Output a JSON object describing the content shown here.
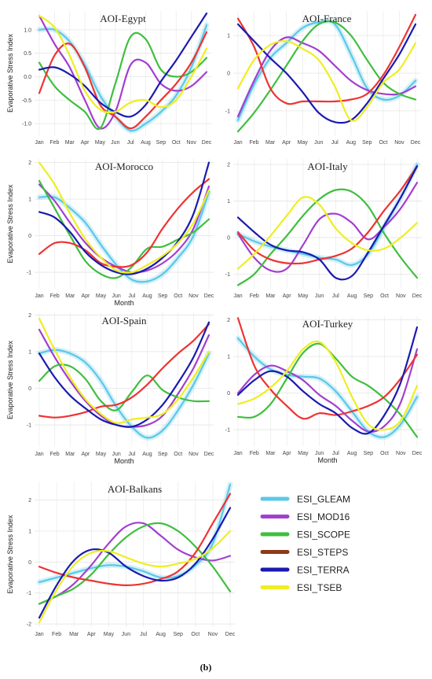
{
  "chart_data": [
    {
      "type": "line",
      "title": "AOI-Egypt",
      "xlabel": "",
      "ylabel": "Evaporative Stress Index",
      "categories": [
        "Jan",
        "Feb",
        "Mar",
        "Apr",
        "May",
        "Jun",
        "Jul",
        "Aug",
        "Sep",
        "Oct",
        "Nov",
        "Dec"
      ],
      "ylim": [
        -1.25,
        1.4
      ],
      "yticks": [
        1.0,
        0.5,
        0.0,
        -0.5,
        -1.0
      ],
      "ytick_labels": [
        "1.0",
        "0.5",
        "0.0",
        "-0.5",
        "-1.0"
      ],
      "series": [
        {
          "name": "ESI_GLEAM",
          "color": "#5bc8e8",
          "values": [
            1.0,
            1.0,
            0.75,
            0.25,
            -0.4,
            -0.85,
            -1.15,
            -1.0,
            -0.75,
            -0.4,
            0.2,
            1.1
          ]
        },
        {
          "name": "ESI_MOD16",
          "color": "#a23fd0",
          "values": [
            1.3,
            0.7,
            0.2,
            -0.5,
            -1.1,
            -0.75,
            0.25,
            0.3,
            -0.15,
            -0.3,
            -0.2,
            0.1
          ]
        },
        {
          "name": "ESI_SCOPE",
          "color": "#3fbf3f",
          "values": [
            0.3,
            -0.2,
            -0.5,
            -0.75,
            -1.1,
            -0.15,
            0.85,
            0.8,
            0.15,
            0.0,
            0.1,
            0.4
          ]
        },
        {
          "name": "ESI_STEPS",
          "color": "#ee3333",
          "values": [
            -0.35,
            0.45,
            0.7,
            0.2,
            -0.6,
            -0.85,
            -1.1,
            -0.85,
            -0.5,
            -0.15,
            0.3,
            0.95
          ]
        },
        {
          "name": "ESI_TERRA",
          "color": "#1a1ab0",
          "values": [
            0.15,
            0.2,
            0.05,
            -0.2,
            -0.55,
            -0.75,
            -0.85,
            -0.6,
            -0.1,
            0.35,
            0.85,
            1.35
          ]
        },
        {
          "name": "ESI_TSEB",
          "color": "#eeee22",
          "values": [
            1.3,
            1.05,
            0.45,
            -0.3,
            -0.7,
            -0.75,
            -0.55,
            -0.5,
            -0.65,
            -0.5,
            0.0,
            0.6
          ]
        }
      ]
    },
    {
      "type": "line",
      "title": "AOI-France",
      "xlabel": "",
      "ylabel": "",
      "categories": [
        "Jan",
        "Feb",
        "Mar",
        "Apr",
        "May",
        "Jun",
        "Jul",
        "Aug",
        "Sep",
        "Oct",
        "Nov",
        "Dec"
      ],
      "ylim": [
        -1.65,
        1.65
      ],
      "yticks": [
        1,
        0,
        -1
      ],
      "ytick_labels": [
        "1",
        "0",
        "-1"
      ],
      "series": [
        {
          "name": "ESI_GLEAM",
          "color": "#5bc8e8",
          "values": [
            -1.25,
            -0.3,
            0.4,
            0.8,
            1.2,
            1.35,
            1.3,
            0.5,
            -0.4,
            -0.7,
            -0.6,
            -0.2
          ]
        },
        {
          "name": "ESI_MOD16",
          "color": "#a23fd0",
          "values": [
            -1.15,
            -0.2,
            0.6,
            0.95,
            0.8,
            0.6,
            0.2,
            -0.2,
            -0.45,
            -0.55,
            -0.55,
            -0.35
          ]
        },
        {
          "name": "ESI_SCOPE",
          "color": "#3fbf3f",
          "values": [
            -1.55,
            -1.05,
            -0.45,
            0.2,
            0.85,
            1.3,
            1.35,
            1.0,
            0.35,
            -0.25,
            -0.55,
            -0.7
          ]
        },
        {
          "name": "ESI_STEPS",
          "color": "#ee3333",
          "values": [
            1.45,
            0.7,
            -0.4,
            -0.8,
            -0.75,
            -0.75,
            -0.75,
            -0.7,
            -0.55,
            -0.05,
            0.7,
            1.55
          ]
        },
        {
          "name": "ESI_TERRA",
          "color": "#1a1ab0",
          "values": [
            1.3,
            0.85,
            0.4,
            0.0,
            -0.5,
            -1.05,
            -1.3,
            -1.25,
            -0.8,
            -0.15,
            0.5,
            1.3
          ]
        },
        {
          "name": "ESI_TSEB",
          "color": "#eeee22",
          "values": [
            -0.4,
            0.35,
            0.75,
            0.85,
            0.65,
            0.35,
            -0.35,
            -1.25,
            -0.9,
            -0.25,
            0.1,
            0.8
          ]
        }
      ]
    },
    {
      "type": "line",
      "title": "AOI-Morocco",
      "xlabel": "Month",
      "ylabel": "Evaporative Stress Index",
      "categories": [
        "Jan",
        "Feb",
        "Mar",
        "Apr",
        "May",
        "Jun",
        "Jul",
        "Aug",
        "Sep",
        "Oct",
        "Nov",
        "Dec"
      ],
      "ylim": [
        -1.45,
        2.1
      ],
      "yticks": [
        2,
        1,
        0,
        -1
      ],
      "ytick_labels": [
        "2",
        "1",
        "0",
        "-1"
      ],
      "series": [
        {
          "name": "ESI_GLEAM",
          "color": "#5bc8e8",
          "values": [
            1.05,
            1.05,
            0.75,
            0.35,
            -0.25,
            -0.8,
            -1.2,
            -1.25,
            -1.05,
            -0.6,
            0.0,
            1.2
          ]
        },
        {
          "name": "ESI_MOD16",
          "color": "#a23fd0",
          "values": [
            1.4,
            0.95,
            0.35,
            -0.2,
            -0.6,
            -0.85,
            -1.0,
            -0.95,
            -0.75,
            -0.4,
            0.2,
            1.35
          ]
        },
        {
          "name": "ESI_SCOPE",
          "color": "#3fbf3f",
          "values": [
            1.5,
            0.75,
            0.0,
            -0.7,
            -1.05,
            -1.15,
            -0.85,
            -0.35,
            -0.3,
            -0.1,
            0.1,
            0.45
          ]
        },
        {
          "name": "ESI_STEPS",
          "color": "#ee3333",
          "values": [
            -0.5,
            -0.2,
            -0.2,
            -0.4,
            -0.75,
            -0.85,
            -0.8,
            -0.45,
            0.2,
            0.75,
            1.2,
            1.55
          ]
        },
        {
          "name": "ESI_TERRA",
          "color": "#1a1ab0",
          "values": [
            0.65,
            0.5,
            0.1,
            -0.45,
            -0.8,
            -1.0,
            -1.05,
            -0.9,
            -0.6,
            -0.15,
            0.6,
            2.0
          ]
        },
        {
          "name": "ESI_TSEB",
          "color": "#eeee22",
          "values": [
            2.0,
            1.4,
            0.6,
            -0.1,
            -0.6,
            -0.95,
            -1.0,
            -0.8,
            -0.55,
            -0.2,
            0.35,
            1.25
          ]
        }
      ]
    },
    {
      "type": "line",
      "title": "AOI-Italy",
      "xlabel": "",
      "ylabel": "",
      "categories": [
        "Jan",
        "Feb",
        "Mar",
        "Apr",
        "May",
        "Jun",
        "Jul",
        "Aug",
        "Sep",
        "Oct",
        "Nov",
        "Dec"
      ],
      "ylim": [
        -1.4,
        2.15
      ],
      "yticks": [
        2,
        1,
        0,
        -1
      ],
      "ytick_labels": [
        "2",
        "1",
        "0",
        "-1"
      ],
      "series": [
        {
          "name": "ESI_GLEAM",
          "color": "#5bc8e8",
          "values": [
            0.1,
            -0.1,
            -0.25,
            -0.35,
            -0.45,
            -0.55,
            -0.6,
            -0.75,
            -0.45,
            0.3,
            1.1,
            2.0
          ]
        },
        {
          "name": "ESI_MOD16",
          "color": "#a23fd0",
          "values": [
            0.1,
            -0.55,
            -0.9,
            -0.85,
            -0.2,
            0.5,
            0.65,
            0.4,
            -0.05,
            0.3,
            0.8,
            1.5
          ]
        },
        {
          "name": "ESI_SCOPE",
          "color": "#3fbf3f",
          "values": [
            -1.3,
            -1.0,
            -0.45,
            0.05,
            0.6,
            1.05,
            1.3,
            1.25,
            0.85,
            0.1,
            -0.55,
            -1.1
          ]
        },
        {
          "name": "ESI_STEPS",
          "color": "#ee3333",
          "values": [
            0.15,
            -0.35,
            -0.6,
            -0.7,
            -0.7,
            -0.6,
            -0.5,
            -0.3,
            0.15,
            0.75,
            1.3,
            1.95
          ]
        },
        {
          "name": "ESI_TERRA",
          "color": "#1a1ab0",
          "values": [
            0.55,
            0.15,
            -0.2,
            -0.35,
            -0.4,
            -0.6,
            -1.1,
            -1.05,
            -0.4,
            0.35,
            1.1,
            1.95
          ]
        },
        {
          "name": "ESI_TSEB",
          "color": "#eeee22",
          "values": [
            -0.85,
            -0.45,
            0.05,
            0.6,
            1.1,
            0.9,
            0.25,
            -0.15,
            -0.35,
            -0.3,
            0.0,
            0.4
          ]
        }
      ]
    },
    {
      "type": "line",
      "title": "AOI-Spain",
      "xlabel": "Month",
      "ylabel": "Evaporative Stress Index",
      "categories": [
        "Jan",
        "Feb",
        "Mar",
        "Apr",
        "May",
        "Jun",
        "Jul",
        "Aug",
        "Sep",
        "Oct",
        "Nov",
        "Dec"
      ],
      "ylim": [
        -1.6,
        2.05
      ],
      "yticks": [
        2,
        1,
        0,
        -1
      ],
      "ytick_labels": [
        "2",
        "1",
        "0",
        "-1"
      ],
      "series": [
        {
          "name": "ESI_GLEAM",
          "color": "#5bc8e8",
          "values": [
            0.95,
            1.05,
            0.95,
            0.7,
            0.2,
            -0.5,
            -1.05,
            -1.35,
            -1.15,
            -0.6,
            0.1,
            0.95
          ]
        },
        {
          "name": "ESI_MOD16",
          "color": "#a23fd0",
          "values": [
            1.6,
            0.85,
            0.2,
            -0.35,
            -0.75,
            -1.0,
            -1.05,
            -1.0,
            -0.75,
            -0.15,
            0.55,
            1.45
          ]
        },
        {
          "name": "ESI_SCOPE",
          "color": "#3fbf3f",
          "values": [
            0.2,
            0.6,
            0.6,
            0.25,
            -0.35,
            -0.6,
            -0.1,
            0.35,
            -0.05,
            -0.25,
            -0.35,
            -0.35
          ]
        },
        {
          "name": "ESI_STEPS",
          "color": "#ee3333",
          "values": [
            -0.75,
            -0.8,
            -0.75,
            -0.65,
            -0.5,
            -0.45,
            -0.25,
            0.1,
            0.55,
            0.95,
            1.3,
            1.75
          ]
        },
        {
          "name": "ESI_TERRA",
          "color": "#1a1ab0",
          "values": [
            0.95,
            0.3,
            -0.2,
            -0.55,
            -0.85,
            -1.0,
            -1.05,
            -0.85,
            -0.45,
            0.15,
            0.85,
            1.8
          ]
        },
        {
          "name": "ESI_TSEB",
          "color": "#eeee22",
          "values": [
            1.9,
            1.05,
            0.3,
            -0.3,
            -0.7,
            -0.95,
            -0.85,
            -0.8,
            -0.7,
            -0.3,
            0.3,
            1.0
          ]
        }
      ]
    },
    {
      "type": "line",
      "title": "AOI-Turkey",
      "xlabel": "Month",
      "ylabel": "",
      "categories": [
        "Jan",
        "Feb",
        "Mar",
        "Apr",
        "May",
        "Jun",
        "Jul",
        "Aug",
        "Sep",
        "Oct",
        "Nov",
        "Dec"
      ],
      "ylim": [
        -1.45,
        2.1
      ],
      "yticks": [
        2,
        1,
        0,
        -1
      ],
      "ytick_labels": [
        "2",
        "1",
        "0",
        "-1"
      ],
      "series": [
        {
          "name": "ESI_GLEAM",
          "color": "#5bc8e8",
          "values": [
            1.5,
            1.0,
            0.65,
            0.5,
            0.45,
            0.4,
            0.05,
            -0.5,
            -1.05,
            -1.2,
            -0.85,
            -0.1
          ]
        },
        {
          "name": "ESI_MOD16",
          "color": "#a23fd0",
          "values": [
            0.0,
            0.5,
            0.75,
            0.6,
            0.35,
            -0.05,
            -0.35,
            -0.75,
            -1.05,
            -0.9,
            -0.25,
            1.2
          ]
        },
        {
          "name": "ESI_SCOPE",
          "color": "#3fbf3f",
          "values": [
            -0.65,
            -0.65,
            -0.3,
            0.4,
            1.1,
            1.35,
            0.95,
            0.45,
            0.2,
            -0.15,
            -0.6,
            -1.2
          ]
        },
        {
          "name": "ESI_STEPS",
          "color": "#ee3333",
          "values": [
            2.05,
            0.75,
            0.1,
            -0.35,
            -0.7,
            -0.55,
            -0.6,
            -0.5,
            -0.35,
            -0.1,
            0.4,
            1.05
          ]
        },
        {
          "name": "ESI_TERRA",
          "color": "#1a1ab0",
          "values": [
            -0.05,
            0.35,
            0.6,
            0.45,
            0.05,
            -0.3,
            -0.55,
            -0.95,
            -1.1,
            -0.6,
            0.3,
            1.8
          ]
        },
        {
          "name": "ESI_TSEB",
          "color": "#eeee22",
          "values": [
            -0.3,
            -0.15,
            0.15,
            0.6,
            1.2,
            1.4,
            0.85,
            -0.1,
            -0.85,
            -1.0,
            -0.75,
            0.2
          ]
        }
      ]
    },
    {
      "type": "line",
      "title": "AOI-Balkans",
      "xlabel": "",
      "ylabel": "Evaporative Stress Index",
      "categories": [
        "Jan",
        "Feb",
        "Mar",
        "Apr",
        "May",
        "Jun",
        "Jul",
        "Aug",
        "Sep",
        "Oct",
        "Nov",
        "Dec"
      ],
      "ylim": [
        -2.1,
        2.6
      ],
      "yticks": [
        2,
        1,
        0,
        -1,
        -2
      ],
      "ytick_labels": [
        "2",
        "1",
        "0",
        "-1",
        "-2"
      ],
      "series": [
        {
          "name": "ESI_GLEAM",
          "color": "#5bc8e8",
          "values": [
            -0.65,
            -0.5,
            -0.35,
            -0.2,
            -0.1,
            -0.15,
            -0.3,
            -0.5,
            -0.45,
            -0.1,
            0.6,
            2.5
          ]
        },
        {
          "name": "ESI_MOD16",
          "color": "#a23fd0",
          "values": [
            -1.35,
            -1.1,
            -0.7,
            -0.1,
            0.6,
            1.15,
            1.25,
            0.85,
            0.4,
            0.15,
            0.05,
            0.2
          ]
        },
        {
          "name": "ESI_SCOPE",
          "color": "#3fbf3f",
          "values": [
            -1.35,
            -1.1,
            -0.85,
            -0.4,
            0.25,
            0.8,
            1.15,
            1.25,
            1.0,
            0.5,
            -0.15,
            -0.95
          ]
        },
        {
          "name": "ESI_STEPS",
          "color": "#ee3333",
          "values": [
            -0.15,
            -0.35,
            -0.5,
            -0.6,
            -0.7,
            -0.75,
            -0.7,
            -0.55,
            -0.3,
            0.3,
            1.25,
            2.2
          ]
        },
        {
          "name": "ESI_TERRA",
          "color": "#1a1ab0",
          "values": [
            -1.8,
            -0.75,
            0.05,
            0.4,
            0.3,
            -0.15,
            -0.45,
            -0.6,
            -0.5,
            -0.05,
            0.75,
            1.75
          ]
        },
        {
          "name": "ESI_TSEB",
          "color": "#eeee22",
          "values": [
            -1.95,
            -0.9,
            -0.1,
            0.3,
            0.35,
            0.15,
            -0.05,
            -0.15,
            -0.05,
            0.1,
            0.45,
            1.0
          ]
        }
      ]
    }
  ],
  "legend": {
    "items": [
      {
        "label": "ESI_GLEAM",
        "color": "#5bc8e8"
      },
      {
        "label": "ESI_MOD16",
        "color": "#a23fd0"
      },
      {
        "label": "ESI_SCOPE",
        "color": "#3fbf3f"
      },
      {
        "label": "ESI_STEPS",
        "color": "#8b3a1a"
      },
      {
        "label": "ESI_TERRA",
        "color": "#1a1ab0"
      },
      {
        "label": "ESI_TSEB",
        "color": "#eeee22"
      }
    ]
  },
  "caption": "(b)"
}
